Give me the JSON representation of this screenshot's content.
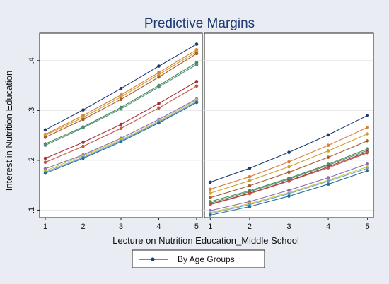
{
  "chart_data": {
    "type": "line",
    "title": "Predictive Margins",
    "xlabel": "Lecture on Nutrition Education_Middle School",
    "ylabel": "Interest in Nutrition Education",
    "x": [
      1,
      2,
      3,
      4,
      5
    ],
    "xlim": [
      0.85,
      5.15
    ],
    "ylim": [
      0.085,
      0.455
    ],
    "yticks": [
      ".1",
      ".2",
      ".3",
      ".4"
    ],
    "ytick_values": [
      0.1,
      0.2,
      0.3,
      0.4
    ],
    "grid": true,
    "legend": {
      "label": "By Age Groups",
      "placement": "bottom-center"
    },
    "colors": [
      "#1f3b73",
      "#e07b39",
      "#c8a326",
      "#a85d30",
      "#3e8f4f",
      "#5a8a7f",
      "#a6323b",
      "#c25541",
      "#8f6bb0",
      "#c9c930",
      "#6aa0d8",
      "#2a6e8f"
    ],
    "panels": [
      {
        "series": [
          {
            "values": [
              0.261,
              0.301,
              0.344,
              0.389,
              0.433
            ]
          },
          {
            "values": [
              0.252,
              0.29,
              0.331,
              0.376,
              0.422
            ]
          },
          {
            "values": [
              0.25,
              0.286,
              0.327,
              0.372,
              0.418
            ]
          },
          {
            "values": [
              0.246,
              0.282,
              0.322,
              0.367,
              0.414
            ]
          },
          {
            "values": [
              0.233,
              0.267,
              0.306,
              0.35,
              0.396
            ]
          },
          {
            "values": [
              0.23,
              0.265,
              0.303,
              0.347,
              0.392
            ]
          },
          {
            "values": [
              0.204,
              0.236,
              0.272,
              0.314,
              0.358
            ]
          },
          {
            "values": [
              0.196,
              0.228,
              0.264,
              0.305,
              0.349
            ]
          },
          {
            "values": [
              0.183,
              0.211,
              0.244,
              0.282,
              0.323
            ]
          },
          {
            "values": [
              0.179,
              0.209,
              0.241,
              0.279,
              0.321
            ]
          },
          {
            "values": [
              0.176,
              0.206,
              0.239,
              0.277,
              0.318
            ]
          },
          {
            "values": [
              0.174,
              0.204,
              0.237,
              0.275,
              0.316
            ]
          }
        ]
      },
      {
        "series": [
          {
            "values": [
              0.156,
              0.184,
              0.216,
              0.251,
              0.29
            ]
          },
          {
            "values": [
              0.142,
              0.167,
              0.197,
              0.23,
              0.266
            ]
          },
          {
            "values": [
              0.134,
              0.159,
              0.187,
              0.219,
              0.253
            ]
          },
          {
            "values": [
              0.125,
              0.149,
              0.176,
              0.206,
              0.239
            ]
          },
          {
            "values": [
              0.117,
              0.139,
              0.164,
              0.192,
              0.223
            ]
          },
          {
            "values": [
              0.114,
              0.137,
              0.162,
              0.19,
              0.22
            ]
          },
          {
            "values": [
              0.112,
              0.134,
              0.159,
              0.187,
              0.217
            ]
          },
          {
            "values": [
              0.111,
              0.133,
              0.158,
              0.185,
              0.215
            ]
          },
          {
            "values": [
              0.099,
              0.117,
              0.14,
              0.165,
              0.193
            ]
          },
          {
            "values": [
              0.095,
              0.113,
              0.135,
              0.16,
              0.187
            ]
          },
          {
            "values": [
              0.093,
              0.111,
              0.133,
              0.158,
              0.184
            ]
          },
          {
            "values": [
              0.09,
              0.107,
              0.128,
              0.152,
              0.179
            ]
          }
        ]
      }
    ]
  }
}
